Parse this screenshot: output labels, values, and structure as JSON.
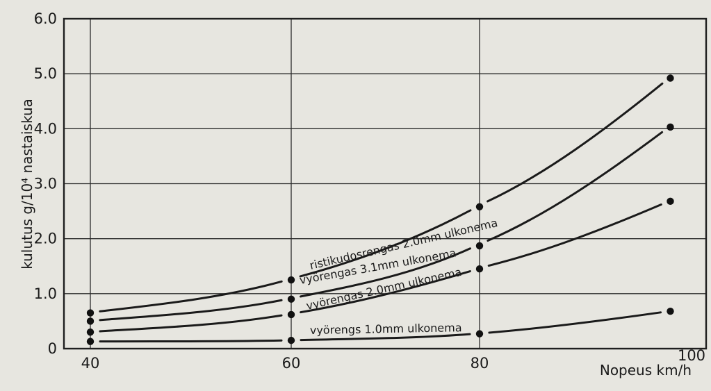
{
  "chart_data": {
    "type": "line",
    "xlabel": "Nopeus km/h",
    "ylabel": "kulutus g/10⁴ nastaiskua",
    "xlim": [
      40,
      100
    ],
    "ylim": [
      0,
      6.0
    ],
    "xticks": [
      40,
      60,
      80,
      100
    ],
    "xtick_labels": [
      "40",
      "60",
      "80",
      "100"
    ],
    "yticks": [
      0,
      1.0,
      2.0,
      3.0,
      4.0,
      5.0,
      6.0
    ],
    "ytick_labels": [
      "0",
      "1.0",
      "2.0",
      "3.0",
      "4.0",
      "5.0",
      "6.0"
    ],
    "grid": true,
    "series": [
      {
        "name": "ristikudosrengas 2.0mm ulkonema",
        "x": [
          40,
          60,
          80,
          98
        ],
        "y": [
          0.65,
          1.25,
          2.58,
          4.92
        ]
      },
      {
        "name": "vyörengas 3.1mm ulkonema",
        "x": [
          40,
          60,
          80,
          98
        ],
        "y": [
          0.5,
          0.9,
          1.87,
          4.03
        ]
      },
      {
        "name": "vyörengas 2.0mm ulkonema",
        "x": [
          40,
          60,
          80,
          98
        ],
        "y": [
          0.3,
          0.62,
          1.45,
          2.68
        ]
      },
      {
        "name": "vyörengs 1.0mm ulkonema",
        "x": [
          40,
          60,
          80,
          98
        ],
        "y": [
          0.13,
          0.15,
          0.27,
          0.68
        ]
      }
    ]
  }
}
